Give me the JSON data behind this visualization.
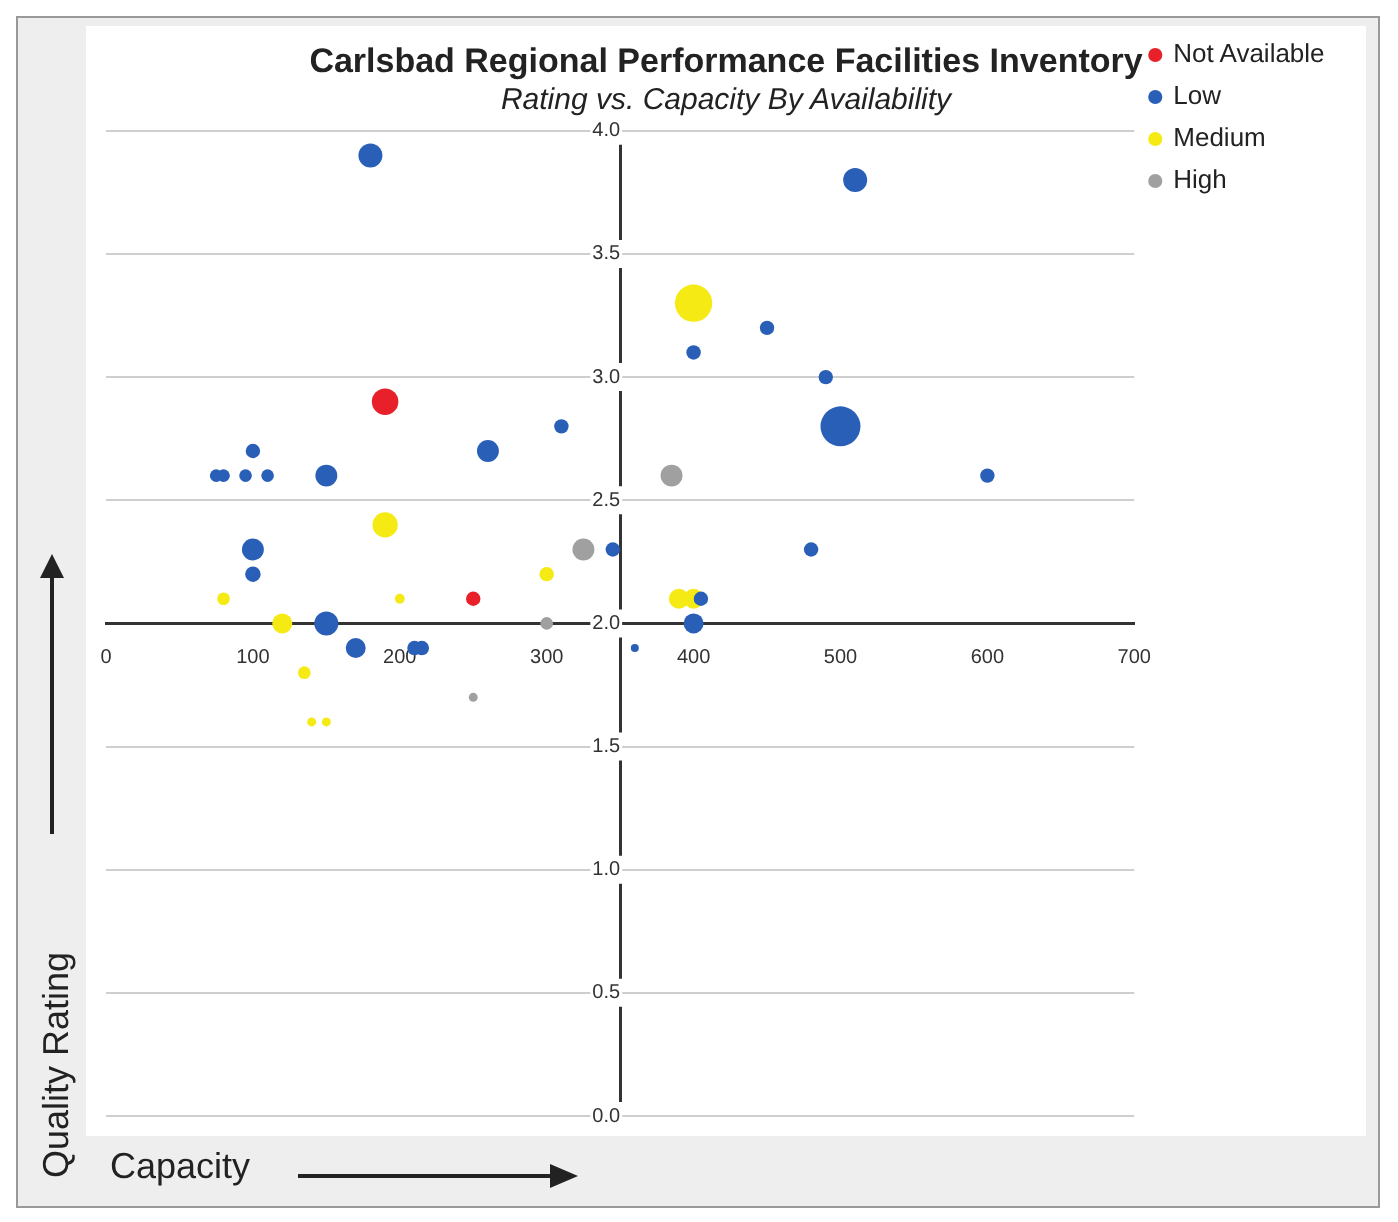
{
  "chart_data": {
    "type": "bubble",
    "title": "Carlsbad Regional Performance Facilities Inventory",
    "subtitle": "Rating vs. Capacity By Availability",
    "xlabel": "Capacity",
    "ylabel": "Quality Rating",
    "xlim": [
      0,
      700
    ],
    "xticks": [
      0,
      100,
      200,
      300,
      400,
      500,
      600,
      700
    ],
    "ylim": [
      0,
      4
    ],
    "yticks": [
      {
        "value": 0,
        "label": "0.0"
      },
      {
        "value": 0.5,
        "label": "0.5"
      },
      {
        "value": 1,
        "label": "1.0"
      },
      {
        "value": 1.5,
        "label": "1.5"
      },
      {
        "value": 2,
        "label": "2.0"
      },
      {
        "value": 2.5,
        "label": "2.5"
      },
      {
        "value": 3,
        "label": "3.0"
      },
      {
        "value": 3.5,
        "label": "3.5"
      },
      {
        "value": 4,
        "label": "4.0"
      }
    ],
    "grid": "y",
    "legend": "top right",
    "series": [
      {
        "name": "Not Available",
        "color": "#e8202a",
        "x": [
          190,
          250
        ],
        "values": [
          2.9,
          2.1
        ],
        "sizes": [
          0.44,
          0.13
        ]
      },
      {
        "name": "Low",
        "color": "#2a5fb8",
        "x": [
          180,
          100,
          75,
          80,
          95,
          110,
          150,
          260,
          310,
          100,
          100,
          150,
          170,
          210,
          215,
          345,
          360,
          400,
          400,
          405,
          510,
          450,
          490,
          500,
          600,
          480
        ],
        "values": [
          3.9,
          2.7,
          2.6,
          2.6,
          2.6,
          2.6,
          2.6,
          2.7,
          2.8,
          2.3,
          2.2,
          2.0,
          1.9,
          1.9,
          1.9,
          2.3,
          1.9,
          3.1,
          2.0,
          2.1,
          3.8,
          3.2,
          3.0,
          2.8,
          2.6,
          2.3
        ],
        "sizes": [
          0.36,
          0.13,
          0.1,
          0.1,
          0.1,
          0.1,
          0.3,
          0.3,
          0.13,
          0.3,
          0.15,
          0.36,
          0.25,
          0.13,
          0.13,
          0.13,
          0.04,
          0.13,
          0.25,
          0.13,
          0.36,
          0.13,
          0.13,
          1,
          0.13,
          0.13
        ]
      },
      {
        "name": "Medium",
        "color": "#f5ea14",
        "x": [
          400,
          190,
          80,
          120,
          200,
          300,
          135,
          140,
          150,
          390,
          400
        ],
        "values": [
          3.3,
          2.4,
          2.1,
          2.0,
          2.1,
          2.2,
          1.8,
          1.6,
          1.6,
          2.1,
          2.1
        ],
        "sizes": [
          0.87,
          0.4,
          0.1,
          0.25,
          0.06,
          0.13,
          0.1,
          0.05,
          0.05,
          0.25,
          0.25
        ]
      },
      {
        "name": "High",
        "color": "#a0a0a0",
        "x": [
          385,
          325,
          300,
          250
        ],
        "values": [
          2.6,
          2.3,
          2.0,
          1.7
        ],
        "sizes": [
          0.3,
          0.3,
          0.1,
          0.05
        ]
      }
    ]
  }
}
